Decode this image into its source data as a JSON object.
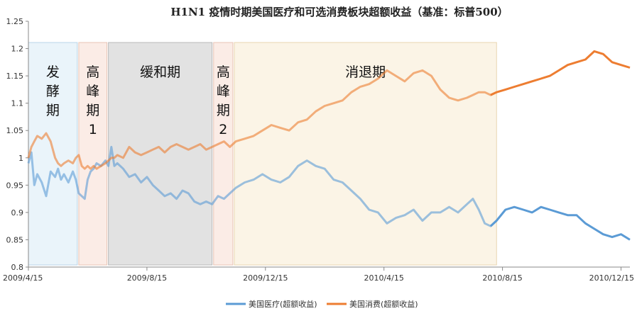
{
  "chart_data": {
    "type": "line",
    "title": "H1N1 疫情时期美国医疗和可选消费板块超额收益（基准：标普500）",
    "ylim": [
      0.8,
      1.25
    ],
    "yticks": [
      "0.8",
      "0.85",
      "0.9",
      "0.95",
      "1",
      "1.05",
      "1.1",
      "1.15",
      "1.2",
      "1.25"
    ],
    "xticks": [
      {
        "label": "2009/4/15",
        "month": 0
      },
      {
        "label": "2009/8/15",
        "month": 4
      },
      {
        "label": "2009/12/15",
        "month": 8
      },
      {
        "label": "2010/4/15",
        "month": 12
      },
      {
        "label": "2010/8/15",
        "month": 16
      },
      {
        "label": "2010/12/15",
        "month": 20
      }
    ],
    "x_range_months": [
      0,
      20.3
    ],
    "phases": [
      {
        "label_lines": [
          "发",
          "酵",
          "期"
        ],
        "start": 0.0,
        "end": 1.65,
        "color": "#eaf4fa",
        "border": "#b9d4e8"
      },
      {
        "label_lines": [
          "高",
          "峰",
          "期",
          "1"
        ],
        "start": 1.7,
        "end": 2.65,
        "color": "#fbece6",
        "border": "#e8c4b5"
      },
      {
        "label_lines": [
          "缓和期"
        ],
        "start": 2.7,
        "end": 6.2,
        "color": "#e2e2e2",
        "border": "#b8b8b8"
      },
      {
        "label_lines": [
          "高",
          "峰",
          "期",
          "2"
        ],
        "start": 6.25,
        "end": 6.9,
        "color": "#fbece6",
        "border": "#e8c4b5"
      },
      {
        "label_lines": [
          "消退期"
        ],
        "start": 6.95,
        "end": 15.8,
        "color": "#fbf4e6",
        "border": "#e8d6b0"
      }
    ],
    "series": [
      {
        "name": "美国医疗(超额收益)",
        "color": "#5b9bd5",
        "x": [
          0,
          0.1,
          0.2,
          0.3,
          0.45,
          0.6,
          0.75,
          0.9,
          1.0,
          1.1,
          1.2,
          1.35,
          1.5,
          1.6,
          1.7,
          1.8,
          1.9,
          2.0,
          2.1,
          2.2,
          2.3,
          2.45,
          2.6,
          2.7,
          2.8,
          2.9,
          3.0,
          3.2,
          3.4,
          3.6,
          3.8,
          4.0,
          4.2,
          4.4,
          4.6,
          4.8,
          5.0,
          5.2,
          5.4,
          5.6,
          5.8,
          6.0,
          6.2,
          6.4,
          6.6,
          6.8,
          7.0,
          7.3,
          7.6,
          7.9,
          8.2,
          8.5,
          8.8,
          9.1,
          9.4,
          9.7,
          10.0,
          10.3,
          10.6,
          10.9,
          11.2,
          11.5,
          11.8,
          12.1,
          12.4,
          12.7,
          13.0,
          13.3,
          13.6,
          13.9,
          14.2,
          14.5,
          14.8,
          15.0,
          15.2,
          15.4,
          15.6,
          15.8,
          16.1,
          16.4,
          16.7,
          17.0,
          17.3,
          17.6,
          17.9,
          18.2,
          18.5,
          18.8,
          19.1,
          19.4,
          19.7,
          20.0,
          20.3
        ],
        "values": [
          0.99,
          1.01,
          0.95,
          0.97,
          0.955,
          0.93,
          0.975,
          0.965,
          0.98,
          0.96,
          0.97,
          0.955,
          0.975,
          0.96,
          0.935,
          0.93,
          0.925,
          0.96,
          0.975,
          0.98,
          0.99,
          0.985,
          0.995,
          0.985,
          1.02,
          0.985,
          0.99,
          0.98,
          0.965,
          0.97,
          0.955,
          0.965,
          0.95,
          0.94,
          0.93,
          0.935,
          0.925,
          0.94,
          0.935,
          0.92,
          0.915,
          0.92,
          0.915,
          0.93,
          0.925,
          0.935,
          0.945,
          0.955,
          0.96,
          0.97,
          0.96,
          0.955,
          0.965,
          0.985,
          0.995,
          0.985,
          0.98,
          0.96,
          0.955,
          0.94,
          0.925,
          0.905,
          0.9,
          0.88,
          0.89,
          0.895,
          0.905,
          0.885,
          0.9,
          0.9,
          0.91,
          0.9,
          0.915,
          0.925,
          0.905,
          0.88,
          0.875,
          0.885,
          0.905,
          0.91,
          0.905,
          0.9,
          0.91,
          0.905,
          0.9,
          0.895,
          0.895,
          0.88,
          0.87,
          0.86,
          0.855,
          0.86,
          0.85
        ]
      },
      {
        "name": "美国消费(超额收益)",
        "color": "#ed7d31",
        "x": [
          0,
          0.1,
          0.2,
          0.3,
          0.45,
          0.6,
          0.75,
          0.9,
          1.0,
          1.1,
          1.2,
          1.35,
          1.5,
          1.6,
          1.7,
          1.8,
          1.9,
          2.0,
          2.1,
          2.2,
          2.3,
          2.45,
          2.6,
          2.7,
          2.8,
          2.9,
          3.0,
          3.2,
          3.4,
          3.6,
          3.8,
          4.0,
          4.2,
          4.4,
          4.6,
          4.8,
          5.0,
          5.2,
          5.4,
          5.6,
          5.8,
          6.0,
          6.2,
          6.4,
          6.6,
          6.8,
          7.0,
          7.3,
          7.6,
          7.9,
          8.2,
          8.5,
          8.8,
          9.1,
          9.4,
          9.7,
          10.0,
          10.3,
          10.6,
          10.9,
          11.2,
          11.5,
          11.8,
          12.1,
          12.4,
          12.7,
          13.0,
          13.3,
          13.6,
          13.9,
          14.2,
          14.5,
          14.8,
          15.0,
          15.2,
          15.4,
          15.6,
          15.8,
          16.1,
          16.4,
          16.7,
          17.0,
          17.3,
          17.6,
          17.9,
          18.2,
          18.5,
          18.8,
          19.1,
          19.4,
          19.7,
          20.0,
          20.3
        ],
        "values": [
          1.0,
          1.02,
          1.03,
          1.04,
          1.035,
          1.045,
          1.03,
          1.0,
          0.99,
          0.985,
          0.99,
          0.995,
          0.99,
          1.0,
          1.005,
          0.985,
          0.98,
          0.985,
          0.98,
          0.985,
          0.98,
          0.985,
          0.99,
          0.995,
          1.0,
          1.0,
          1.005,
          1.0,
          1.02,
          1.01,
          1.005,
          1.01,
          1.015,
          1.02,
          1.01,
          1.02,
          1.025,
          1.02,
          1.015,
          1.02,
          1.025,
          1.015,
          1.02,
          1.025,
          1.03,
          1.02,
          1.03,
          1.035,
          1.04,
          1.05,
          1.06,
          1.055,
          1.05,
          1.065,
          1.07,
          1.085,
          1.095,
          1.1,
          1.105,
          1.12,
          1.13,
          1.135,
          1.145,
          1.16,
          1.15,
          1.14,
          1.155,
          1.16,
          1.15,
          1.125,
          1.11,
          1.105,
          1.11,
          1.115,
          1.12,
          1.12,
          1.115,
          1.12,
          1.125,
          1.13,
          1.135,
          1.14,
          1.145,
          1.15,
          1.16,
          1.17,
          1.175,
          1.18,
          1.195,
          1.19,
          1.175,
          1.17,
          1.165
        ]
      }
    ],
    "legend_position": "bottom"
  }
}
